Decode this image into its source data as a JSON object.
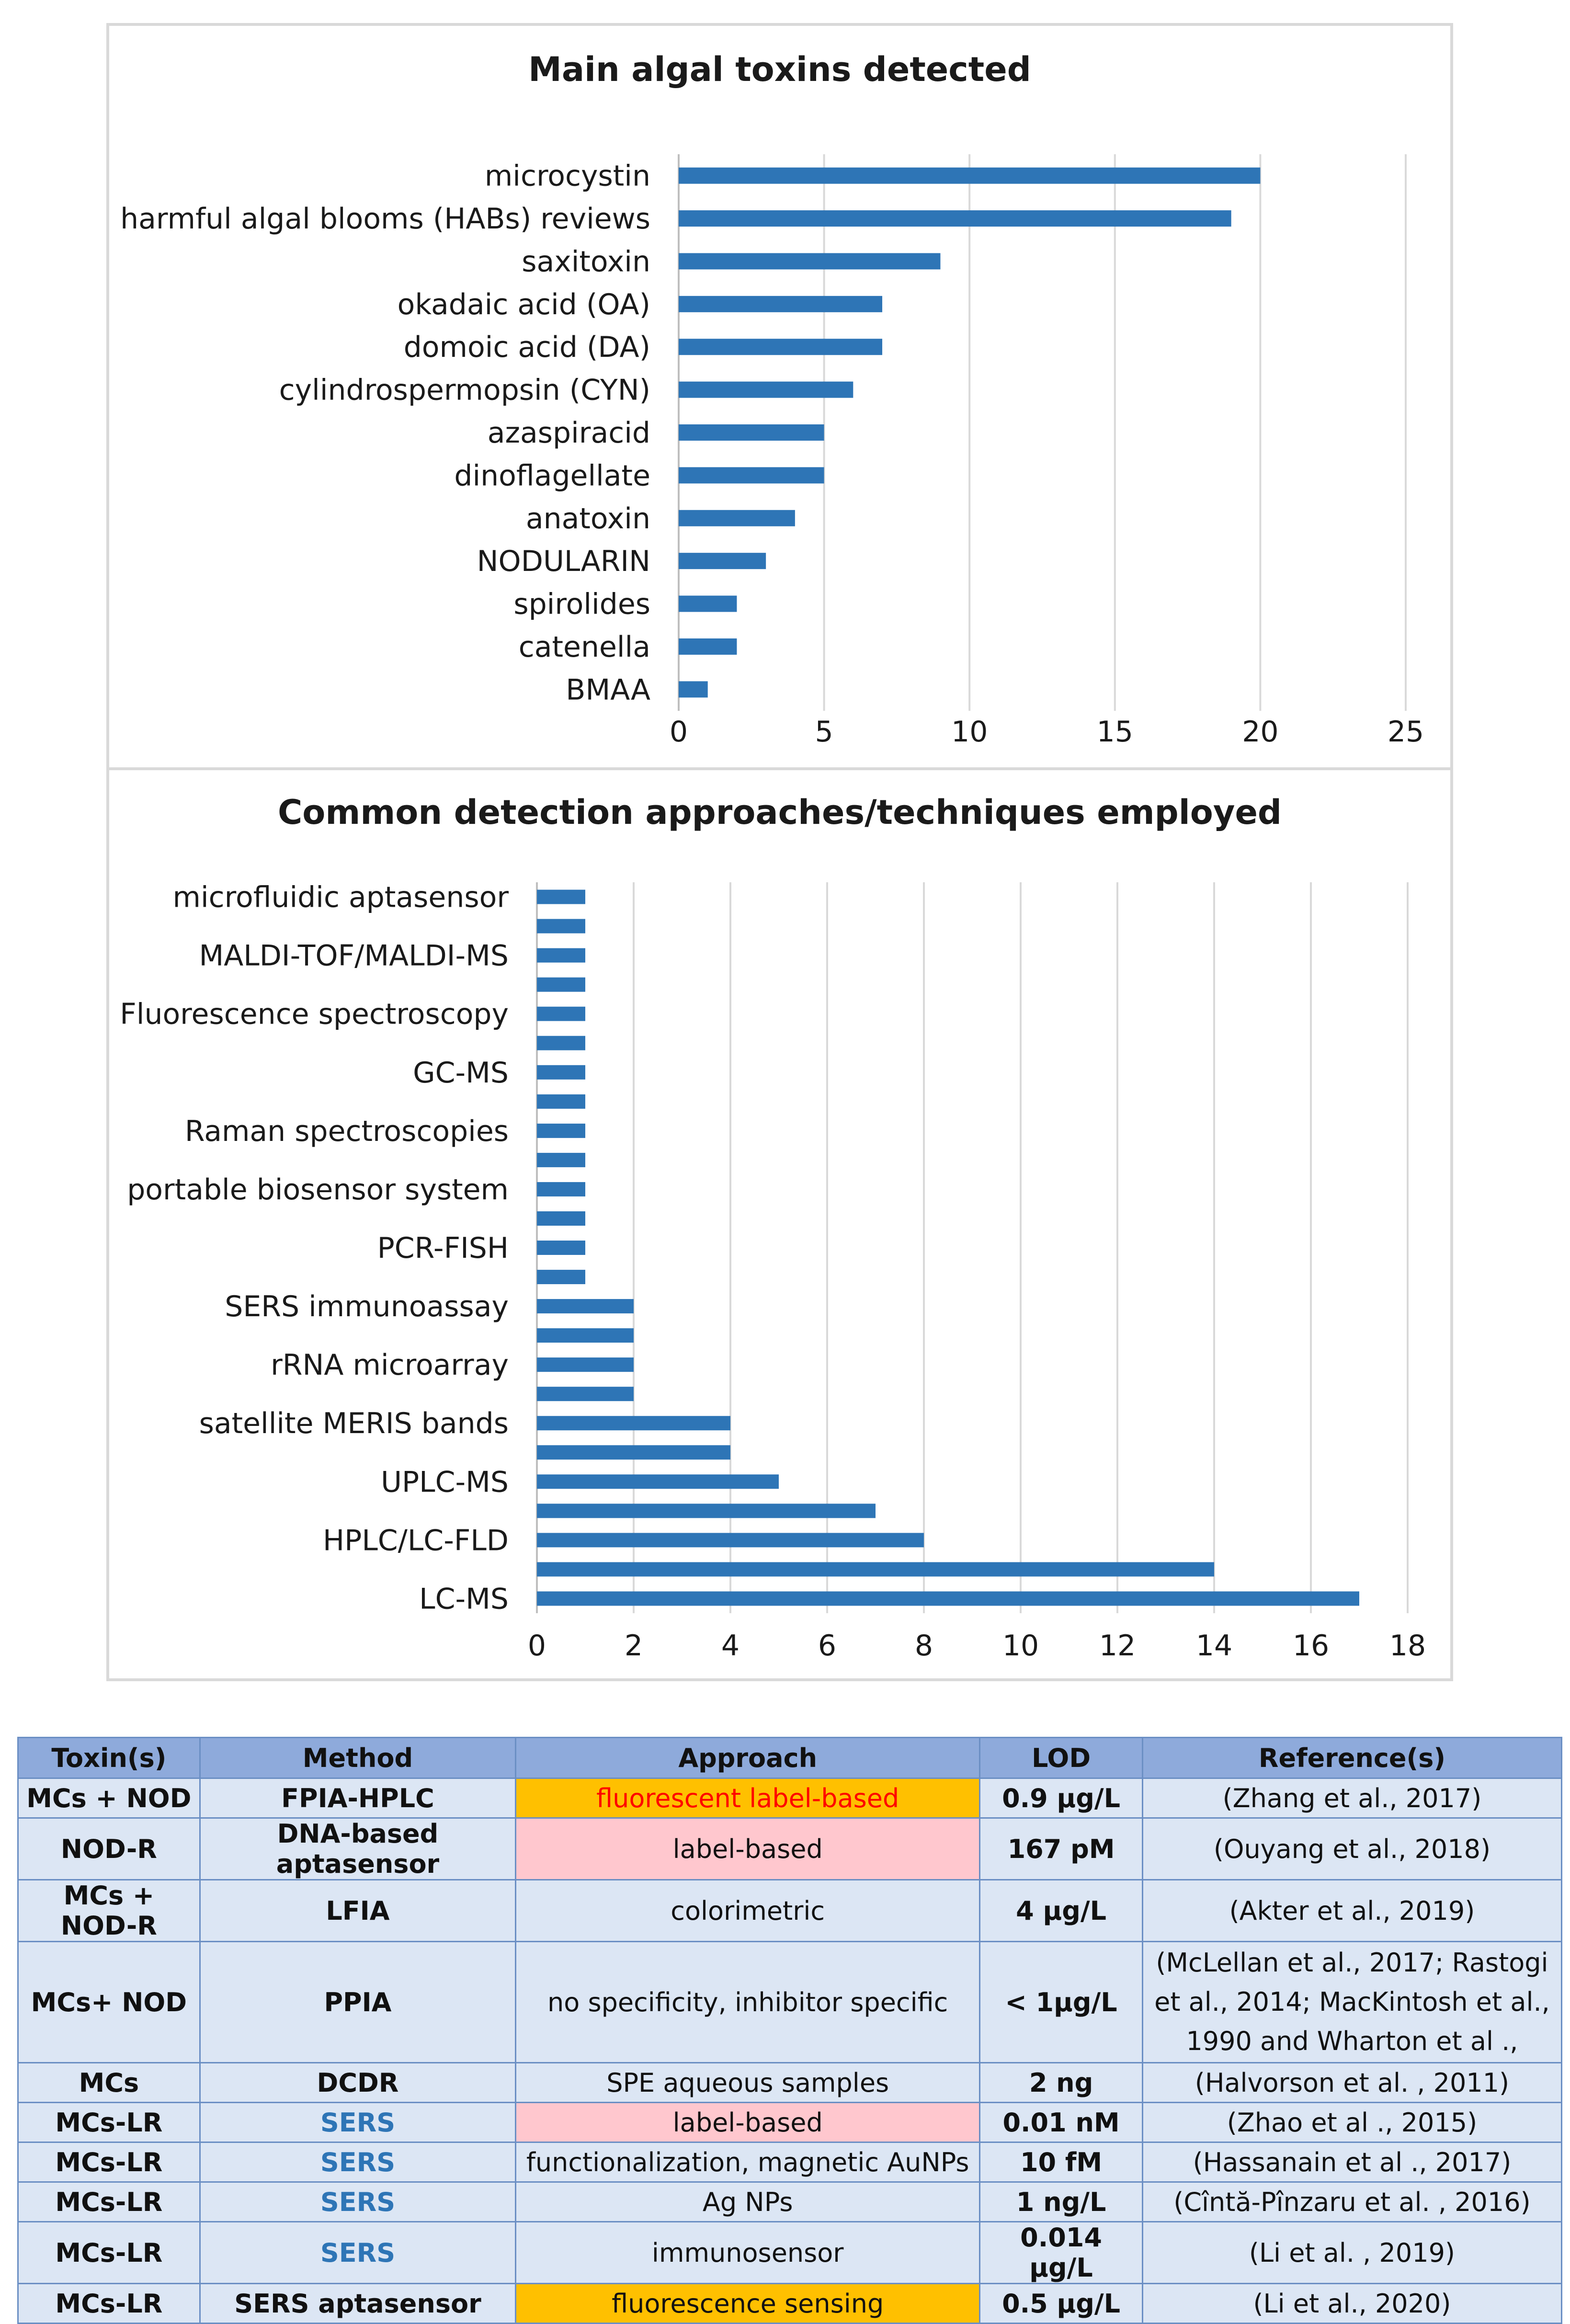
{
  "chart_data": [
    {
      "type": "bar",
      "orientation": "horizontal",
      "title": "Main algal toxins detected",
      "categories": [
        "microcystin",
        "harmful algal blooms (HABs) reviews",
        "saxitoxin",
        "okadaic acid (OA)",
        "domoic acid (DA)",
        "cylindrospermopsin (CYN)",
        "azaspiracid",
        "dinoflagellate",
        "anatoxin",
        "NODULARIN",
        "spirolides",
        "catenella",
        "BMAA"
      ],
      "values": [
        20,
        19,
        9,
        7,
        7,
        6,
        5,
        5,
        4,
        3,
        2,
        2,
        1
      ],
      "xlim": [
        0,
        25
      ],
      "xticks": [
        "0",
        "5",
        "10",
        "15",
        "20",
        "25"
      ],
      "grid": true,
      "color": "#2e75b6"
    },
    {
      "type": "bar",
      "orientation": "horizontal",
      "title": "Common detection approaches/techniques employed",
      "categories": [
        "microfluidic aptasensor",
        "",
        "MALDI-TOF/MALDI-MS",
        "",
        "Fluorescence spectroscopy",
        "",
        "GC-MS",
        "",
        "Raman spectroscopies",
        "",
        "portable biosensor system",
        "",
        "PCR-FISH",
        "",
        "SERS immunoassay",
        "",
        "rRNA microarray",
        "",
        "satellite MERIS bands",
        "",
        "UPLC-MS",
        "",
        "HPLC/LC-FLD",
        "",
        "LC-MS"
      ],
      "values": [
        1,
        1,
        1,
        1,
        1,
        1,
        1,
        1,
        1,
        1,
        1,
        1,
        1,
        1,
        2,
        2,
        2,
        2,
        4,
        4,
        5,
        7,
        8,
        14,
        17
      ],
      "xlim": [
        0,
        18
      ],
      "xticks": [
        "0",
        "2",
        "4",
        "6",
        "8",
        "10",
        "12",
        "14",
        "16",
        "18"
      ],
      "grid": true,
      "color": "#2e75b6"
    }
  ],
  "table": {
    "headers": [
      "Toxin(s)",
      "Method",
      "Approach",
      "LOD",
      "Reference(s)"
    ],
    "rows": [
      {
        "toxin": "MCs + NOD",
        "method": "FPIA-HPLC",
        "approach": "fluorescent label-based",
        "lod": "0.9 µg/L",
        "ref": "(Zhang et al., 2017)"
      },
      {
        "toxin": "NOD-R",
        "method": "DNA-based aptasensor",
        "approach": "label-based",
        "lod": "167 pM",
        "ref": "(Ouyang et al., 2018)"
      },
      {
        "toxin": "MCs + NOD-R",
        "method": "LFIA",
        "approach": "colorimetric",
        "lod": "4 µg/L",
        "ref": "(Akter et al.,  2019)"
      },
      {
        "toxin": "MCs+ NOD",
        "method": "PPIA",
        "approach": "no specificity, inhibitor specific",
        "lod": "< 1µg/L",
        "ref": "(McLellan et al., 2017; Rastogi et al., 2014; MacKintosh  et al., 1990  and Wharton et al .,"
      },
      {
        "toxin": "MCs",
        "method": "DCDR",
        "approach": "SPE aqueous samples",
        "lod": "2 ng",
        "ref": "(Halvorson et al. , 2011)"
      },
      {
        "toxin": "MCs-LR",
        "method": "SERS",
        "approach": "label-based",
        "lod": "0.01 nM",
        "ref": "(Zhao et al ., 2015)"
      },
      {
        "toxin": "MCs-LR",
        "method": "SERS",
        "approach": "functionalization, magnetic AuNPs",
        "lod": "10 fM",
        "ref": "(Hassanain et al ., 2017)"
      },
      {
        "toxin": "MCs-LR",
        "method": "SERS",
        "approach": "Ag NPs",
        "lod": "1 ng/L",
        "ref": "(Cîntă-Pînzaru et al. , 2016)"
      },
      {
        "toxin": "MCs-LR",
        "method": "SERS",
        "approach": "immunosensor",
        "lod": "0.014 µg/L",
        "ref": "(Li et al. , 2019)"
      },
      {
        "toxin": "MCs-LR",
        "method": "SERS aptasensor",
        "approach": "fluorescence sensing",
        "lod": "0.5 µg/L",
        "ref": "(Li et al., 2020)"
      }
    ]
  }
}
